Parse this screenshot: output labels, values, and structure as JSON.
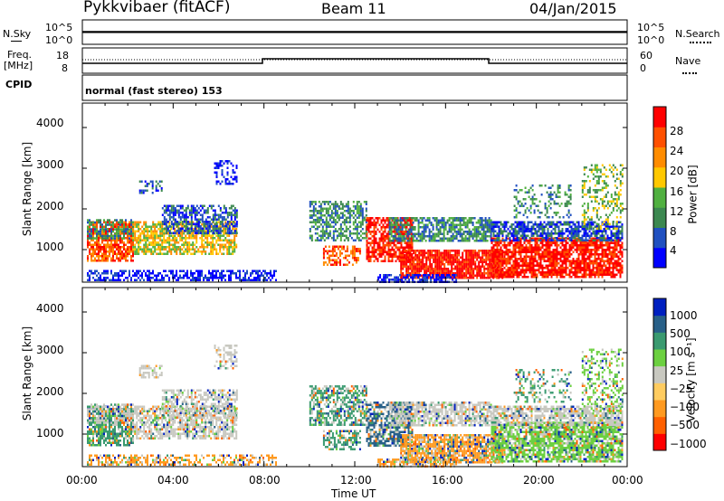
{
  "header": {
    "radar": "Pykkvibaer (fitACF)",
    "beam": "Beam 11",
    "date": "04/Jan/2015"
  },
  "status_panels": {
    "nsky_label": "N.Sky",
    "nsky_ticks": [
      "10^5",
      "10^0"
    ],
    "nsearch_label": "N.Search",
    "nsearch_ticks": [
      "10^5",
      "10^0"
    ],
    "freq_label_1": "Freq.",
    "freq_label_2": "[MHz]",
    "freq_ticks": [
      "18",
      "8"
    ],
    "nave_label": "Nave",
    "nave_ticks": [
      "60",
      "0"
    ],
    "cpid_label": "CPID",
    "cpid_text": "normal (fast stereo) 153"
  },
  "chart_data": [
    {
      "type": "heatmap",
      "name": "power-panel",
      "ylabel": "Slant Range [km]",
      "ylim": [
        200,
        4600
      ],
      "yticks": [
        "4000",
        "3000",
        "2000",
        "1000"
      ],
      "xlim_hours": [
        0,
        24
      ],
      "colorbar_label": "Power [dB]",
      "colorbar_ticks": [
        "28",
        "24",
        "20",
        "16",
        "12",
        "8",
        "4"
      ],
      "colorbar_colors": [
        "#0000ff",
        "#2050c0",
        "#3c8850",
        "#50b040",
        "#ffc800",
        "#ff8c00",
        "#ff5000",
        "#ff0000"
      ]
    },
    {
      "type": "heatmap",
      "name": "velocity-panel",
      "ylabel": "Slant Range [km]",
      "ylim": [
        200,
        4600
      ],
      "yticks": [
        "4000",
        "3000",
        "2000",
        "1000"
      ],
      "xlim_hours": [
        0,
        24
      ],
      "colorbar_label": "Velocity [m s⁻¹]",
      "colorbar_ticks": [
        "1000",
        "500",
        "100",
        "25",
        "−25",
        "−100",
        "−500",
        "−1000"
      ],
      "colorbar_colors": [
        "#ff0000",
        "#ff6000",
        "#ff9a20",
        "#ffcc60",
        "#c8c8c0",
        "#6cd040",
        "#3a9a70",
        "#286088",
        "#0020c0"
      ]
    }
  ],
  "x_axis": {
    "label": "Time UT",
    "ticks": [
      "00:00",
      "04:00",
      "08:00",
      "12:00",
      "16:00",
      "20:00",
      "00:00"
    ]
  }
}
